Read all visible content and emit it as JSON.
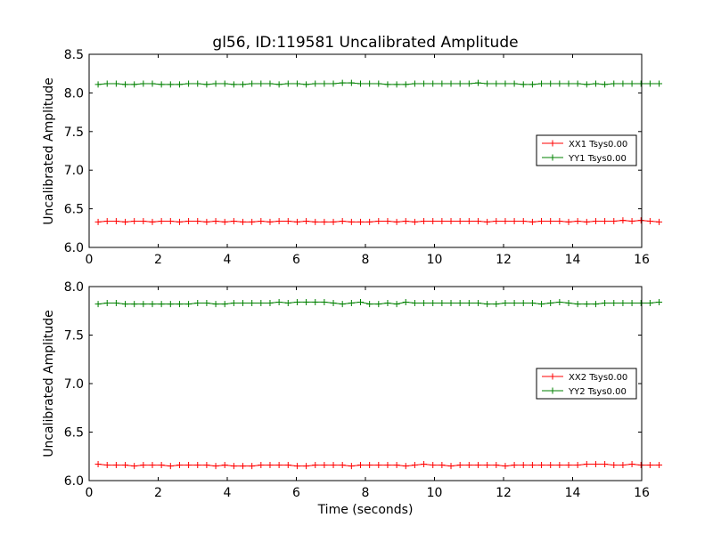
{
  "chart_data": [
    {
      "type": "line",
      "title": "gl56, ID:119581 Uncalibrated Amplitude",
      "xlabel": "",
      "ylabel": "Uncalibrated Amplitude",
      "xlim": [
        0,
        16
      ],
      "ylim": [
        6.0,
        8.5
      ],
      "xticks": [
        "0",
        "2",
        "4",
        "6",
        "8",
        "10",
        "12",
        "14",
        "16"
      ],
      "yticks": [
        "6.0",
        "6.5",
        "7.0",
        "7.5",
        "8.0",
        "8.5"
      ],
      "grid": false,
      "legend_position": "center-right",
      "x_start": 0.26,
      "x_step": 0.262,
      "series": [
        {
          "name": "XX1 Tsys0.00",
          "color": "#ff0000",
          "values": [
            6.33,
            6.34,
            6.34,
            6.33,
            6.34,
            6.34,
            6.33,
            6.34,
            6.34,
            6.33,
            6.34,
            6.34,
            6.33,
            6.34,
            6.33,
            6.34,
            6.33,
            6.33,
            6.34,
            6.33,
            6.34,
            6.34,
            6.33,
            6.34,
            6.33,
            6.33,
            6.33,
            6.34,
            6.33,
            6.33,
            6.33,
            6.34,
            6.34,
            6.33,
            6.34,
            6.33,
            6.34,
            6.34,
            6.34,
            6.34,
            6.34,
            6.34,
            6.34,
            6.33,
            6.34,
            6.34,
            6.34,
            6.34,
            6.33,
            6.34,
            6.34,
            6.34,
            6.33,
            6.34,
            6.33,
            6.34,
            6.34,
            6.34,
            6.35,
            6.34,
            6.35,
            6.34,
            6.33
          ]
        },
        {
          "name": "YY1 Tsys0.00",
          "color": "#008000",
          "values": [
            8.11,
            8.12,
            8.12,
            8.11,
            8.11,
            8.12,
            8.12,
            8.11,
            8.11,
            8.11,
            8.12,
            8.12,
            8.11,
            8.12,
            8.12,
            8.11,
            8.11,
            8.12,
            8.12,
            8.12,
            8.11,
            8.12,
            8.12,
            8.11,
            8.12,
            8.12,
            8.12,
            8.13,
            8.13,
            8.12,
            8.12,
            8.12,
            8.11,
            8.11,
            8.11,
            8.12,
            8.12,
            8.12,
            8.12,
            8.12,
            8.12,
            8.12,
            8.13,
            8.12,
            8.12,
            8.12,
            8.12,
            8.11,
            8.11,
            8.12,
            8.12,
            8.12,
            8.12,
            8.12,
            8.11,
            8.12,
            8.11,
            8.12,
            8.12,
            8.12,
            8.12,
            8.12,
            8.12
          ]
        }
      ]
    },
    {
      "type": "line",
      "title": "",
      "xlabel": "Time (seconds)",
      "ylabel": "Uncalibrated Amplitude",
      "xlim": [
        0,
        16
      ],
      "ylim": [
        6.0,
        8.0
      ],
      "xticks": [
        "0",
        "2",
        "4",
        "6",
        "8",
        "10",
        "12",
        "14",
        "16"
      ],
      "yticks": [
        "6.0",
        "6.5",
        "7.0",
        "7.5",
        "8.0"
      ],
      "grid": false,
      "legend_position": "center-right",
      "x_start": 0.26,
      "x_step": 0.262,
      "series": [
        {
          "name": "XX2 Tsys0.00",
          "color": "#ff0000",
          "values": [
            6.17,
            6.16,
            6.16,
            6.16,
            6.15,
            6.16,
            6.16,
            6.16,
            6.15,
            6.16,
            6.16,
            6.16,
            6.16,
            6.15,
            6.16,
            6.15,
            6.15,
            6.15,
            6.16,
            6.16,
            6.16,
            6.16,
            6.15,
            6.15,
            6.16,
            6.16,
            6.16,
            6.16,
            6.15,
            6.16,
            6.16,
            6.16,
            6.16,
            6.16,
            6.15,
            6.16,
            6.17,
            6.16,
            6.16,
            6.15,
            6.16,
            6.16,
            6.16,
            6.16,
            6.16,
            6.15,
            6.16,
            6.16,
            6.16,
            6.16,
            6.16,
            6.16,
            6.16,
            6.16,
            6.17,
            6.17,
            6.17,
            6.16,
            6.16,
            6.17,
            6.16,
            6.16,
            6.16
          ]
        },
        {
          "name": "YY2 Tsys0.00",
          "color": "#008000",
          "values": [
            7.82,
            7.83,
            7.83,
            7.82,
            7.82,
            7.82,
            7.82,
            7.82,
            7.82,
            7.82,
            7.82,
            7.83,
            7.83,
            7.82,
            7.82,
            7.83,
            7.83,
            7.83,
            7.83,
            7.83,
            7.84,
            7.83,
            7.84,
            7.84,
            7.84,
            7.84,
            7.83,
            7.82,
            7.83,
            7.84,
            7.82,
            7.82,
            7.83,
            7.82,
            7.84,
            7.83,
            7.83,
            7.83,
            7.83,
            7.83,
            7.83,
            7.83,
            7.83,
            7.82,
            7.82,
            7.83,
            7.83,
            7.83,
            7.83,
            7.82,
            7.83,
            7.84,
            7.83,
            7.82,
            7.82,
            7.82,
            7.83,
            7.83,
            7.83,
            7.83,
            7.83,
            7.83,
            7.84
          ]
        }
      ]
    }
  ]
}
